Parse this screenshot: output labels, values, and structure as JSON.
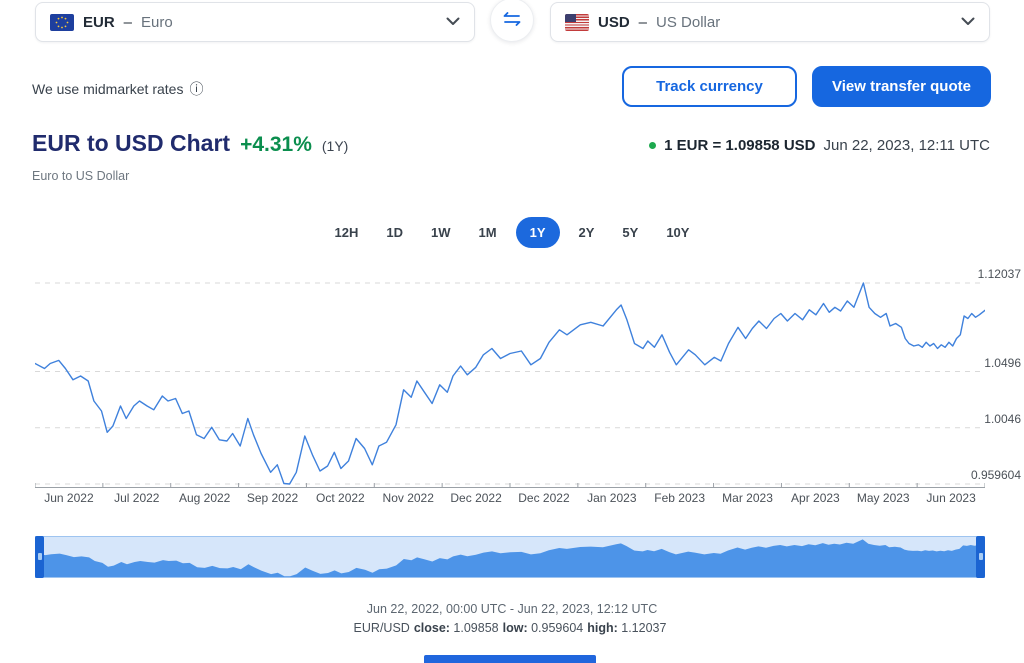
{
  "colors": {
    "accent_blue": "#1667e0",
    "title_navy": "#202b6d",
    "change_green": "#0b8e4e",
    "live_dot_green": "#1da94e",
    "chart_line": "#3f81dc",
    "gridline": "#d9d9d9",
    "axis": "#9aa0a6",
    "brush_bg": "#d6e6fa",
    "brush_fill": "#4d94e8",
    "brush_handle": "#1b64d2"
  },
  "icons": {
    "from_flag": "eu-flag-icon",
    "to_flag": "us-flag-icon",
    "swap": "swap-arrows-icon",
    "dropdown": "chevron-down-icon",
    "info": "info-icon",
    "live_dot": "live-rate-dot"
  },
  "header": {
    "from_currency": {
      "code": "EUR",
      "sep": "–",
      "name": "Euro"
    },
    "to_currency": {
      "code": "USD",
      "sep": "–",
      "name": "US Dollar"
    }
  },
  "toolbar": {
    "midmarket_text": "We use midmarket rates",
    "info_glyph": "ⓘ",
    "track_label": "Track currency",
    "quote_label": "View transfer quote"
  },
  "title_block": {
    "title": "EUR to USD Chart",
    "change": "+4.31%",
    "period": "(1Y)",
    "subtitle": "Euro to US Dollar"
  },
  "rate_info": {
    "rate_text": "1 EUR = 1.09858 USD",
    "timestamp": "Jun 22, 2023, 12:11 UTC"
  },
  "tabs": {
    "options": [
      "12H",
      "1D",
      "1W",
      "1M",
      "1Y",
      "2Y",
      "5Y",
      "10Y"
    ],
    "selected": "1Y"
  },
  "chart_data": {
    "type": "line",
    "title": "EUR to USD, 1Y",
    "x_labels": [
      "Jun 2022",
      "Jul 2022",
      "Aug 2022",
      "Sep 2022",
      "Oct 2022",
      "Nov 2022",
      "Dec 2022",
      "Dec 2022",
      "Jan 2023",
      "Feb 2023",
      "Mar 2023",
      "Apr 2023",
      "May 2023",
      "Jun 2023"
    ],
    "y_ticks": [
      1.12037,
      1.0496,
      1.0046,
      0.959604
    ],
    "y_range_top": 1.1308,
    "y_range_bottom": 0.9564,
    "grid": "dashed-horizontal",
    "legend": "none",
    "series": [
      {
        "name": "EUR/USD",
        "points": [
          [
            0,
            1.056
          ],
          [
            0.01,
            1.052
          ],
          [
            0.016,
            1.056
          ],
          [
            0.025,
            1.0585
          ],
          [
            0.032,
            1.052
          ],
          [
            0.04,
            1.043
          ],
          [
            0.048,
            1.046
          ],
          [
            0.056,
            1.042
          ],
          [
            0.062,
            1.026
          ],
          [
            0.07,
            1.018
          ],
          [
            0.076,
            1.001
          ],
          [
            0.082,
            1.006
          ],
          [
            0.09,
            1.022
          ],
          [
            0.096,
            1.012
          ],
          [
            0.104,
            1.022
          ],
          [
            0.11,
            1.026
          ],
          [
            0.118,
            1.022
          ],
          [
            0.125,
            1.019
          ],
          [
            0.134,
            1.03
          ],
          [
            0.14,
            1.026
          ],
          [
            0.148,
            1.028
          ],
          [
            0.155,
            1.016
          ],
          [
            0.162,
            1.018
          ],
          [
            0.17,
            0.999
          ],
          [
            0.178,
            0.996
          ],
          [
            0.186,
            1.005
          ],
          [
            0.194,
            0.995
          ],
          [
            0.202,
            0.994
          ],
          [
            0.208,
            1.0
          ],
          [
            0.216,
            0.99
          ],
          [
            0.224,
            1.012
          ],
          [
            0.23,
            0.999
          ],
          [
            0.238,
            0.984
          ],
          [
            0.248,
            0.969
          ],
          [
            0.255,
            0.975
          ],
          [
            0.262,
            0.96
          ],
          [
            0.268,
            0.9596
          ],
          [
            0.275,
            0.969
          ],
          [
            0.284,
            0.998
          ],
          [
            0.292,
            0.983
          ],
          [
            0.3,
            0.97
          ],
          [
            0.308,
            0.974
          ],
          [
            0.315,
            0.985
          ],
          [
            0.322,
            0.972
          ],
          [
            0.33,
            0.978
          ],
          [
            0.338,
            0.996
          ],
          [
            0.347,
            0.988
          ],
          [
            0.355,
            0.975
          ],
          [
            0.362,
            0.99
          ],
          [
            0.37,
            0.993
          ],
          [
            0.38,
            1.007
          ],
          [
            0.388,
            1.035
          ],
          [
            0.396,
            1.029
          ],
          [
            0.402,
            1.042
          ],
          [
            0.41,
            1.033
          ],
          [
            0.418,
            1.024
          ],
          [
            0.426,
            1.039
          ],
          [
            0.434,
            1.033
          ],
          [
            0.44,
            1.046
          ],
          [
            0.448,
            1.054
          ],
          [
            0.455,
            1.047
          ],
          [
            0.464,
            1.053
          ],
          [
            0.472,
            1.063
          ],
          [
            0.481,
            1.068
          ],
          [
            0.49,
            1.06
          ],
          [
            0.5,
            1.064
          ],
          [
            0.512,
            1.066
          ],
          [
            0.522,
            1.055
          ],
          [
            0.532,
            1.06
          ],
          [
            0.541,
            1.073
          ],
          [
            0.552,
            1.083
          ],
          [
            0.56,
            1.079
          ],
          [
            0.574,
            1.087
          ],
          [
            0.585,
            1.089
          ],
          [
            0.598,
            1.086
          ],
          [
            0.612,
            1.099
          ],
          [
            0.617,
            1.1028
          ],
          [
            0.623,
            1.091
          ],
          [
            0.631,
            1.072
          ],
          [
            0.64,
            1.068
          ],
          [
            0.645,
            1.074
          ],
          [
            0.652,
            1.069
          ],
          [
            0.66,
            1.079
          ],
          [
            0.668,
            1.065
          ],
          [
            0.675,
            1.055
          ],
          [
            0.688,
            1.067
          ],
          [
            0.695,
            1.063
          ],
          [
            0.705,
            1.055
          ],
          [
            0.715,
            1.061
          ],
          [
            0.722,
            1.058
          ],
          [
            0.73,
            1.072
          ],
          [
            0.74,
            1.085
          ],
          [
            0.748,
            1.076
          ],
          [
            0.755,
            1.084
          ],
          [
            0.762,
            1.09
          ],
          [
            0.77,
            1.084
          ],
          [
            0.778,
            1.092
          ],
          [
            0.785,
            1.096
          ],
          [
            0.792,
            1.09
          ],
          [
            0.8,
            1.096
          ],
          [
            0.808,
            1.091
          ],
          [
            0.815,
            1.099
          ],
          [
            0.822,
            1.095
          ],
          [
            0.83,
            1.104
          ],
          [
            0.836,
            1.097
          ],
          [
            0.842,
            1.101
          ],
          [
            0.848,
            1.098
          ],
          [
            0.855,
            1.106
          ],
          [
            0.862,
            1.101
          ],
          [
            0.872,
            1.1204
          ],
          [
            0.878,
            1.101
          ],
          [
            0.884,
            1.096
          ],
          [
            0.89,
            1.093
          ],
          [
            0.896,
            1.096
          ],
          [
            0.9,
            1.086
          ],
          [
            0.906,
            1.088
          ],
          [
            0.912,
            1.085
          ],
          [
            0.916,
            1.076
          ],
          [
            0.92,
            1.072
          ],
          [
            0.925,
            1.07
          ],
          [
            0.93,
            1.071
          ],
          [
            0.934,
            1.069
          ],
          [
            0.938,
            1.073
          ],
          [
            0.942,
            1.07
          ],
          [
            0.946,
            1.072
          ],
          [
            0.95,
            1.068
          ],
          [
            0.954,
            1.071
          ],
          [
            0.958,
            1.069
          ],
          [
            0.962,
            1.073
          ],
          [
            0.966,
            1.07
          ],
          [
            0.97,
            1.076
          ],
          [
            0.974,
            1.079
          ],
          [
            0.978,
            1.094
          ],
          [
            0.982,
            1.092
          ],
          [
            0.986,
            1.096
          ],
          [
            0.99,
            1.093
          ],
          [
            0.994,
            1.095
          ],
          [
            1,
            1.0986
          ]
        ]
      }
    ]
  },
  "footer": {
    "range_text": "Jun 22, 2022, 00:00 UTC - Jun 22, 2023, 12:12 UTC",
    "pair": "EUR/USD",
    "stats": [
      {
        "label": "close:",
        "value": "1.09858"
      },
      {
        "label": "low:",
        "value": "0.959604"
      },
      {
        "label": "high:",
        "value": "1.12037"
      }
    ]
  }
}
